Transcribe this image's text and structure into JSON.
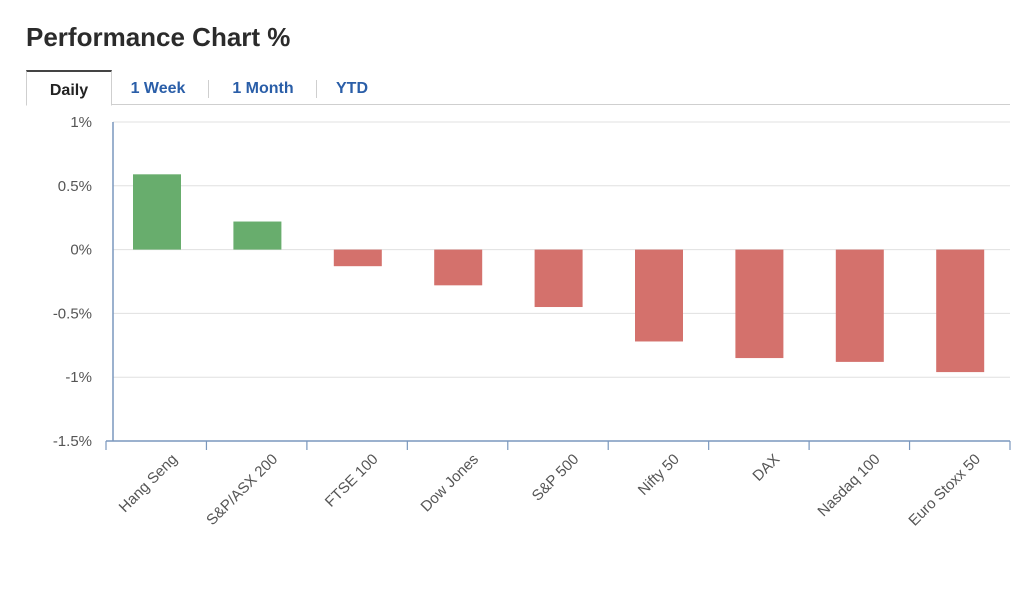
{
  "header": {
    "title": "Performance Chart %"
  },
  "tabs": [
    {
      "label": "Daily",
      "active": true
    },
    {
      "label": "1 Week",
      "active": false
    },
    {
      "label": "1 Month",
      "active": false
    },
    {
      "label": "YTD",
      "active": false
    }
  ],
  "colors": {
    "positive": "#68ad6d",
    "negative": "#d4716c",
    "tab_link": "#2a5ea8"
  },
  "chart_data": {
    "type": "bar",
    "title": "",
    "xlabel": "",
    "ylabel": "",
    "categories": [
      "Hang Seng",
      "S&P/ASX 200",
      "FTSE 100",
      "Dow Jones",
      "S&P 500",
      "Nifty 50",
      "DAX",
      "Nasdaq 100",
      "Euro Stoxx 50"
    ],
    "values": [
      0.59,
      0.22,
      -0.13,
      -0.28,
      -0.45,
      -0.72,
      -0.85,
      -0.88,
      -0.96
    ],
    "ylim": [
      -1.5,
      1
    ],
    "y_ticks": [
      {
        "value": 1,
        "label": "1%"
      },
      {
        "value": 0.5,
        "label": "0.5%"
      },
      {
        "value": 0,
        "label": "0%"
      },
      {
        "value": -0.5,
        "label": "-0.5%"
      },
      {
        "value": -1,
        "label": "-1%"
      },
      {
        "value": -1.5,
        "label": "-1.5%"
      }
    ],
    "grid": true,
    "legend": "none"
  }
}
